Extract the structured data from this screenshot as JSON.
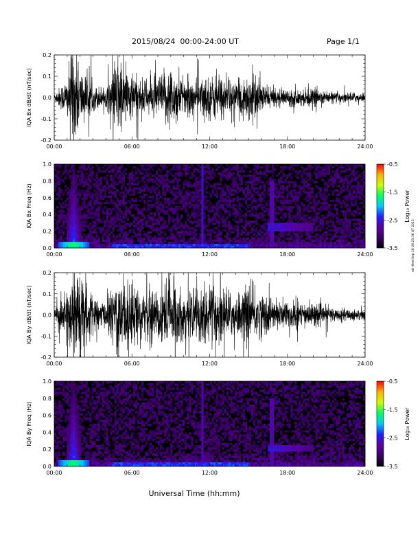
{
  "header": {
    "date_range": "2015/08/24  00:00-24:00 UT",
    "page": "Page 1/1"
  },
  "stamp": "rdr Wed Sep 16 06:25:36 UT 2015",
  "xlabel": "Universal Time (hh:mm)",
  "colors": {
    "trace": "#000000",
    "colorbar": [
      "#000000",
      "#3a0066",
      "#5a00a0",
      "#2020ff",
      "#00c8ff",
      "#00ff60",
      "#c8ff00",
      "#ffb000",
      "#ff0000"
    ]
  },
  "chart_data": [
    {
      "id": "bx-trace",
      "type": "line",
      "ylabel": "IQA Bx dB/dt (nT/sec)",
      "xlim": [
        0,
        24
      ],
      "ylim": [
        -0.2,
        0.2
      ],
      "xticks": [
        "00:00",
        "06:00",
        "12:00",
        "18:00",
        "24:00"
      ],
      "yticks": [
        "-0.2",
        "-0.1",
        "0.0",
        "0.1",
        "0.2"
      ],
      "envelope_hours": [
        0,
        1,
        1.5,
        2,
        3,
        4,
        5,
        5.3,
        6,
        7,
        8,
        9,
        10,
        11,
        12,
        13,
        14,
        15,
        16,
        17,
        18,
        19,
        20,
        21,
        22,
        23,
        24
      ],
      "envelope_amplitude": [
        0.02,
        0.1,
        0.25,
        0.15,
        0.06,
        0.05,
        0.2,
        0.16,
        0.12,
        0.08,
        0.1,
        0.16,
        0.08,
        0.09,
        0.11,
        0.1,
        0.07,
        0.12,
        0.07,
        0.04,
        0.04,
        0.04,
        0.045,
        0.03,
        0.025,
        0.025,
        0.02
      ]
    },
    {
      "id": "bx-spectrogram",
      "type": "heatmap",
      "ylabel": "IQA Bx Freq (Hz)",
      "colorbar_label": "Log₁₀ Power",
      "xlim": [
        0,
        24
      ],
      "ylim": [
        0,
        1.0
      ],
      "xticks": [
        "00:00",
        "06:00",
        "12:00",
        "18:00",
        "24:00"
      ],
      "yticks": [
        "0.0",
        "0.2",
        "0.4",
        "0.6",
        "0.8",
        "1.0"
      ],
      "colorbar_range": [
        -3.5,
        -0.5
      ],
      "colorbar_ticks": [
        "-0.5",
        "-1.5",
        "-2.5",
        "-3.5"
      ],
      "features": [
        {
          "name": "burst",
          "hour": 1.5,
          "fmax": 1.0,
          "level": -2.3
        },
        {
          "name": "band",
          "hour": 11.4,
          "fmax": 1.0,
          "level": -2.6
        },
        {
          "name": "band",
          "hour": 16.8,
          "fmax": 0.8,
          "level": -2.7
        },
        {
          "name": "pc-band",
          "hour_start": 16.5,
          "hour_end": 20.0,
          "freq": 0.25,
          "level": -2.6
        }
      ]
    },
    {
      "id": "by-trace",
      "type": "line",
      "ylabel": "IQA By dB/dt (nT/sec)",
      "xlim": [
        0,
        24
      ],
      "ylim": [
        -0.2,
        0.2
      ],
      "xticks": [
        "00:00",
        "06:00",
        "12:00",
        "18:00",
        "24:00"
      ],
      "yticks": [
        "-0.2",
        "-0.1",
        "0.0",
        "0.1",
        "0.2"
      ],
      "envelope_hours": [
        0,
        1,
        1.5,
        2,
        3,
        4,
        5,
        5.3,
        6,
        7,
        8,
        9,
        10,
        11,
        12,
        13,
        14,
        15,
        16,
        17,
        18,
        19,
        20,
        21,
        22,
        23,
        24
      ],
      "envelope_amplitude": [
        0.025,
        0.12,
        0.25,
        0.2,
        0.08,
        0.06,
        0.22,
        0.2,
        0.16,
        0.1,
        0.14,
        0.2,
        0.1,
        0.13,
        0.16,
        0.14,
        0.1,
        0.14,
        0.11,
        0.07,
        0.08,
        0.06,
        0.06,
        0.04,
        0.03,
        0.03,
        0.025
      ]
    },
    {
      "id": "by-spectrogram",
      "type": "heatmap",
      "ylabel": "IQA By Freq (Hz)",
      "colorbar_label": "Log₁₀ Power",
      "xlim": [
        0,
        24
      ],
      "ylim": [
        0,
        1.0
      ],
      "xticks": [
        "00:00",
        "06:00",
        "12:00",
        "18:00",
        "24:00"
      ],
      "yticks": [
        "0.0",
        "0.2",
        "0.4",
        "0.6",
        "0.8",
        "1.0"
      ],
      "colorbar_range": [
        -3.5,
        -0.5
      ],
      "colorbar_ticks": [
        "-0.5",
        "-1.5",
        "-2.5",
        "-3.5"
      ],
      "features": [
        {
          "name": "burst",
          "hour": 1.5,
          "fmax": 1.0,
          "level": -2.3
        },
        {
          "name": "band",
          "hour": 11.4,
          "fmax": 1.0,
          "level": -2.7
        },
        {
          "name": "band",
          "hour": 16.8,
          "fmax": 0.8,
          "level": -2.7
        },
        {
          "name": "pc-band",
          "hour_start": 16.5,
          "hour_end": 20.0,
          "freq": 0.22,
          "level": -2.6
        }
      ]
    }
  ]
}
